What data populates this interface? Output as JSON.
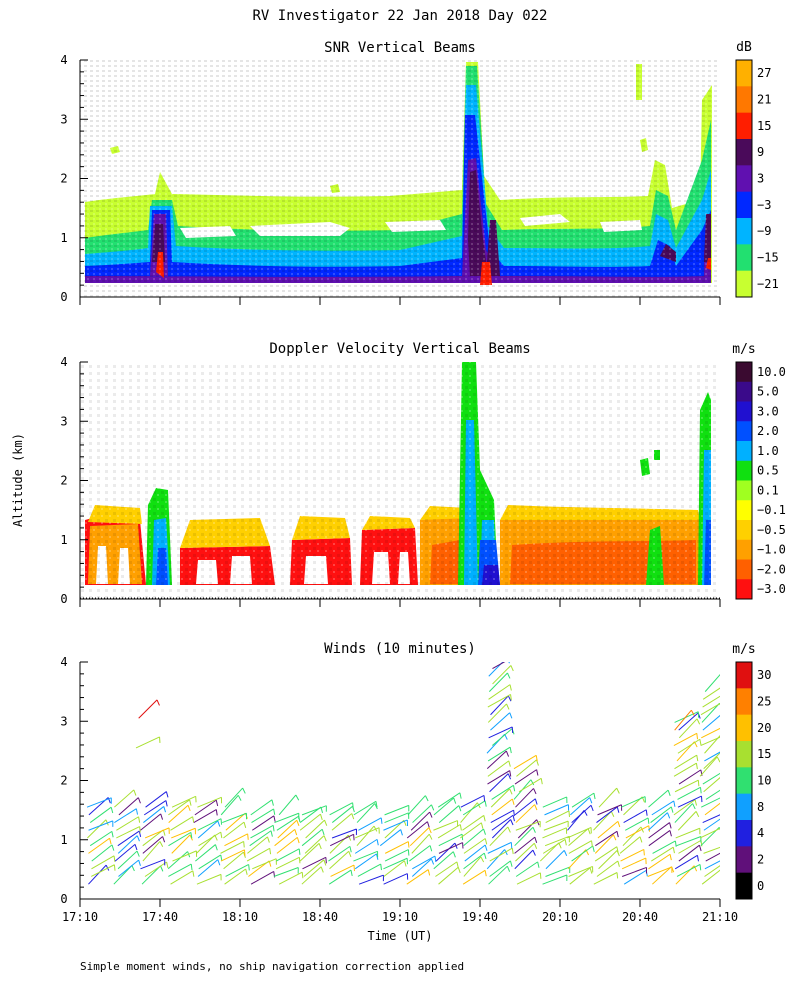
{
  "page_title": "RV Investigator  22 Jan 2018 Day 022",
  "y_axis_label": "Altitude (km)",
  "x_axis_label": "Time (UT)",
  "footnote": "Simple moment winds, no ship navigation correction applied",
  "chart_data": [
    {
      "type": "heatmap",
      "title": "SNR Vertical Beams",
      "unit": "dB",
      "xlim": [
        1030,
        1270
      ],
      "ylim": [
        0,
        4
      ],
      "x_ticks": [
        1030,
        1060,
        1090,
        1120,
        1150,
        1180,
        1210,
        1240,
        1270
      ],
      "y_ticks": [
        0,
        1,
        2,
        3,
        4
      ],
      "y_tick_labels": [
        "0",
        "1",
        "2",
        "3",
        "4"
      ],
      "colorbar": {
        "labels": [
          "27",
          "21",
          "15",
          "9",
          "3",
          "−3",
          "−9",
          "−15",
          "−21"
        ],
        "colors": [
          "#ffb000",
          "#ff7800",
          "#ff1e00",
          "#4a0a5a",
          "#6010b0",
          "#0028ff",
          "#00b4ff",
          "#22e070",
          "#c8ff30"
        ]
      }
    },
    {
      "type": "heatmap",
      "title": "Doppler Velocity Vertical Beams",
      "unit": "m/s",
      "xlim": [
        1030,
        1270
      ],
      "ylim": [
        0,
        4
      ],
      "x_ticks": [
        1030,
        1060,
        1090,
        1120,
        1150,
        1180,
        1210,
        1240,
        1270
      ],
      "y_ticks": [
        0,
        1,
        2,
        3,
        4
      ],
      "y_tick_labels": [
        "0",
        "1",
        "2",
        "3",
        "4"
      ],
      "colorbar": {
        "labels": [
          "10.0",
          "5.0",
          "3.0",
          "2.0",
          "1.0",
          "0.5",
          "0.1",
          "−0.1",
          "−0.5",
          "−1.0",
          "−2.0",
          "−3.0"
        ],
        "colors": [
          "#3a0a30",
          "#3a0a8a",
          "#2010d0",
          "#0050ff",
          "#00b0ff",
          "#10e010",
          "#a0ff20",
          "#ffff00",
          "#ffd000",
          "#ffa000",
          "#ff6000",
          "#ff1010"
        ]
      }
    },
    {
      "type": "scatter",
      "title": "Winds (10 minutes)",
      "unit": "m/s",
      "xlim": [
        1030,
        1270
      ],
      "ylim": [
        0,
        4
      ],
      "x_ticks": [
        1030,
        1060,
        1090,
        1120,
        1150,
        1180,
        1210,
        1240,
        1270
      ],
      "x_tick_labels": [
        "17:10",
        "17:40",
        "18:10",
        "18:40",
        "19:10",
        "19:40",
        "20:10",
        "20:40",
        "21:10"
      ],
      "y_ticks": [
        0,
        1,
        2,
        3,
        4
      ],
      "y_tick_labels": [
        "0",
        "1",
        "2",
        "3",
        "4"
      ],
      "colorbar": {
        "labels": [
          "30",
          "25",
          "20",
          "15",
          "10",
          "8",
          "4",
          "2",
          "0"
        ],
        "colors": [
          "#e01010",
          "#ff8000",
          "#ffc000",
          "#a8e030",
          "#30e070",
          "#10a0ff",
          "#2020e0",
          "#60107a",
          "#000000"
        ]
      }
    }
  ]
}
